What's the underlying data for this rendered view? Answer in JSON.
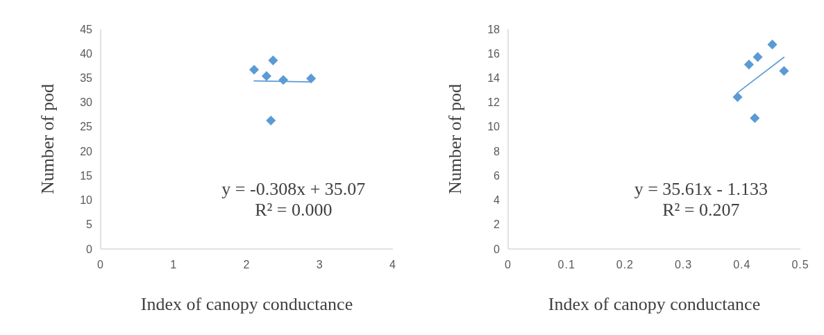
{
  "chart_data": [
    {
      "type": "scatter",
      "xlabel": "Index of canopy conductance",
      "ylabel": "Number of pod",
      "xlim": [
        0,
        4
      ],
      "xticks": [
        0,
        1,
        2,
        3,
        4
      ],
      "ylim": [
        0,
        45
      ],
      "yticks": [
        0,
        5,
        10,
        15,
        20,
        25,
        30,
        35,
        40,
        45
      ],
      "grid": false,
      "annotations": [
        "y = -0.308x + 35.07",
        "R² = 0.000"
      ],
      "series": [
        {
          "color": "#5b9bd5",
          "marker": "diamond",
          "x": [
            2.1,
            2.36,
            2.27,
            2.5,
            2.88,
            2.33
          ],
          "values": [
            36.7,
            38.6,
            35.4,
            34.6,
            34.9,
            26.3
          ]
        },
        {
          "type": "line",
          "color": "#5b9bd5",
          "x": [
            2.1,
            2.88
          ],
          "values": [
            34.4,
            34.2
          ]
        }
      ]
    },
    {
      "type": "scatter",
      "xlabel": "Index of canopy conductance",
      "ylabel": "Number of pod",
      "xlim": [
        0,
        0.5
      ],
      "xticks": [
        0,
        0.1,
        0.2,
        0.3,
        0.4,
        0.5
      ],
      "ylim": [
        0,
        18
      ],
      "yticks": [
        0,
        2,
        4,
        6,
        8,
        10,
        12,
        14,
        16,
        18
      ],
      "grid": false,
      "annotations": [
        "y = 35.61x - 1.133",
        "R² = 0.207"
      ],
      "series": [
        {
          "color": "#5b9bd5",
          "marker": "diamond",
          "x": [
            0.3925,
            0.412,
            0.427,
            0.452,
            0.472,
            0.422
          ],
          "values": [
            12.44,
            15.1,
            15.72,
            16.74,
            14.58,
            10.72
          ]
        },
        {
          "type": "line",
          "color": "#5b9bd5",
          "x": [
            0.3925,
            0.472
          ],
          "values": [
            12.8,
            15.7
          ]
        }
      ]
    }
  ]
}
